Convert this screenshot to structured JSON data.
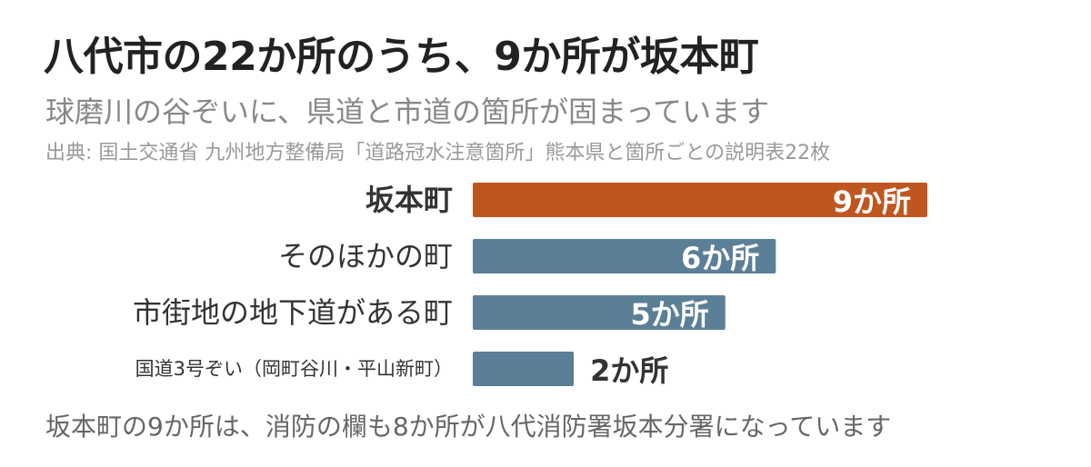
{
  "header": {
    "title": "八代市の22か所のうち、9か所が坂本町",
    "subtitle": "球磨川の谷ぞいに、県道と市道の箇所が固まっています",
    "source": "出典: 国土交通省 九州地方整備局「道路冠水注意箇所」熊本県と箇所ごとの説明表22枚"
  },
  "note": "坂本町の9か所は、消防の欄も8か所が八代消防署坂本分署になっています",
  "colors": {
    "highlight": "#C0561F",
    "normal": "#5B7F96",
    "label_inside": "#ffffff",
    "label_outside": "#333333"
  },
  "chart_data": {
    "type": "bar",
    "orientation": "horizontal",
    "title": "八代市の22か所のうち、9か所が坂本町",
    "categories": [
      "坂本町",
      "そのほかの町",
      "市街地の地下道がある町",
      "国道3号ぞい（岡町谷川・平山新町）"
    ],
    "values": [
      9,
      6,
      5,
      2
    ],
    "value_labels": [
      "9か所",
      "6か所",
      "5か所",
      "2か所"
    ],
    "highlighted": [
      true,
      false,
      false,
      false
    ],
    "xlim": [
      0,
      9
    ],
    "grid": false,
    "legend": "none"
  }
}
